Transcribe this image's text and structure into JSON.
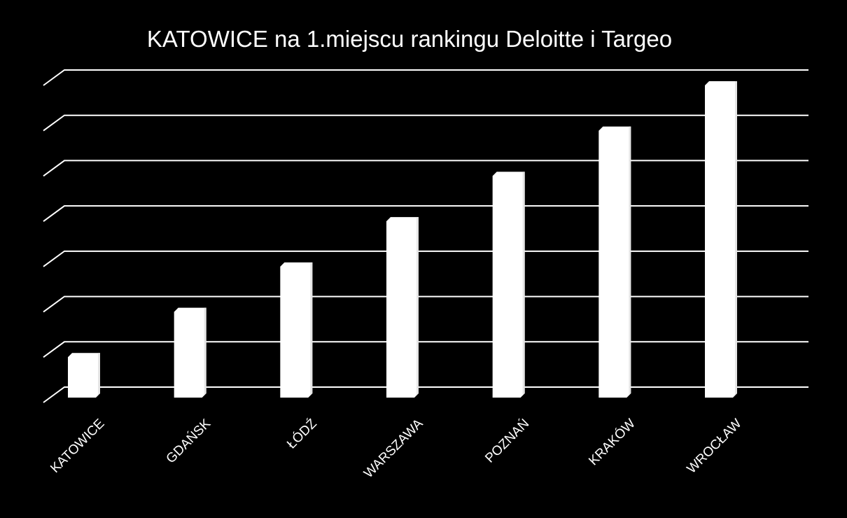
{
  "colors": {
    "background": "#000000",
    "bar": "#ffffff",
    "grid": "#ffffff",
    "text": "#ffffff"
  },
  "chart_data": {
    "type": "bar",
    "title": "KATOWICE na 1.miejscu rankingu Deloitte i Targeo",
    "xlabel": "",
    "ylabel": "",
    "categories": [
      "KATOWICE",
      "GDAŃSK",
      "ŁÓDŹ",
      "WARSZAWA",
      "POZNAŃ",
      "KRAKÓW",
      "WROCŁAW"
    ],
    "values": [
      1,
      2,
      3,
      4,
      5,
      6,
      7
    ],
    "ylim": [
      0,
      7
    ],
    "grid": true,
    "legend": "none",
    "style": "3d"
  }
}
